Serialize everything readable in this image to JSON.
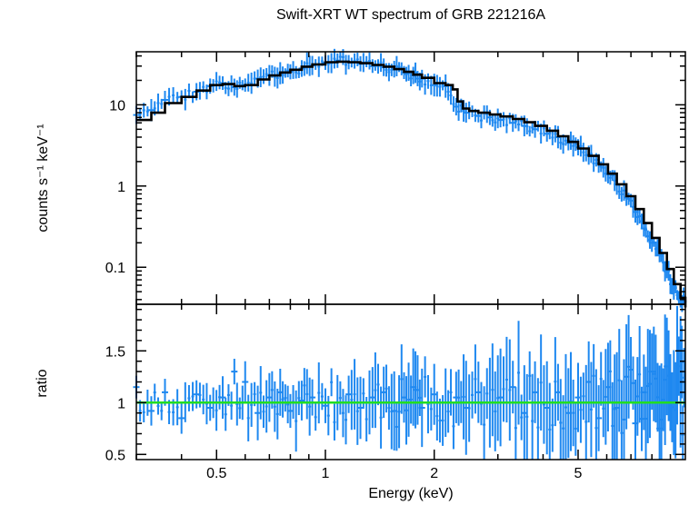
{
  "title": "Swift-XRT WT spectrum of GRB 221216A",
  "colors": {
    "data": "#1e88f0",
    "model": "#000000",
    "unity": "#22dd22",
    "axes": "#000000"
  },
  "chart_data": [
    {
      "type": "line",
      "panel": "spectrum",
      "title": "Swift-XRT WT spectrum of GRB 221216A",
      "xlabel": "Energy (keV)",
      "ylabel": "counts s⁻¹ keV⁻¹",
      "xscale": "log",
      "yscale": "log",
      "xlim": [
        0.3,
        9.9
      ],
      "ylim": [
        0.035,
        45
      ],
      "yticks": [
        {
          "value": 0.1,
          "label": "0.1"
        },
        {
          "value": 1,
          "label": "1"
        },
        {
          "value": 10,
          "label": "10"
        }
      ],
      "series": [
        {
          "kind": "data",
          "x": [
            0.3,
            0.33,
            0.36,
            0.4,
            0.44,
            0.48,
            0.52,
            0.56,
            0.6,
            0.65,
            0.7,
            0.75,
            0.8,
            0.86,
            0.92,
            1.0,
            1.08,
            1.16,
            1.25,
            1.35,
            1.45,
            1.55,
            1.65,
            1.75,
            1.85,
            2.0,
            2.15,
            2.3,
            2.45,
            2.65,
            2.85,
            3.05,
            3.3,
            3.55,
            3.8,
            4.1,
            4.4,
            4.7,
            5.0,
            5.35,
            5.7,
            6.05,
            6.4,
            6.8,
            7.2,
            7.6,
            8.0,
            8.4,
            8.8,
            9.2,
            9.6
          ],
          "y": [
            7.5,
            8.6,
            11.5,
            12.5,
            14.5,
            17.0,
            18.5,
            16.5,
            17.5,
            21.0,
            23.0,
            24.5,
            25.5,
            28.0,
            30.5,
            33.0,
            35.0,
            33.5,
            32.0,
            30.0,
            29.0,
            27.5,
            25.0,
            23.0,
            21.0,
            17.5,
            17.0,
            9.5,
            8.0,
            7.3,
            7.0,
            6.5,
            6.0,
            5.5,
            5.0,
            4.4,
            4.0,
            3.4,
            3.0,
            2.4,
            1.9,
            1.4,
            1.05,
            0.72,
            0.48,
            0.3,
            0.2,
            0.14,
            0.09,
            0.055,
            0.04
          ]
        },
        {
          "kind": "model",
          "x": [
            0.3,
            0.33,
            0.36,
            0.4,
            0.44,
            0.48,
            0.52,
            0.56,
            0.6,
            0.65,
            0.7,
            0.75,
            0.8,
            0.86,
            0.92,
            1.0,
            1.08,
            1.16,
            1.25,
            1.35,
            1.45,
            1.55,
            1.65,
            1.75,
            1.85,
            2.0,
            2.15,
            2.25,
            2.32,
            2.4,
            2.5,
            2.65,
            2.85,
            3.05,
            3.3,
            3.55,
            3.8,
            4.1,
            4.4,
            4.7,
            5.0,
            5.35,
            5.7,
            6.05,
            6.4,
            6.8,
            7.2,
            7.6,
            8.0,
            8.4,
            8.8,
            9.2,
            9.6,
            9.9
          ],
          "y": [
            6.5,
            8.0,
            10.5,
            12.5,
            15.0,
            17.5,
            18.0,
            17.0,
            17.5,
            20.5,
            23.0,
            25.0,
            27.0,
            29.5,
            31.5,
            33.5,
            34.0,
            33.5,
            32.5,
            31.0,
            29.5,
            27.5,
            25.5,
            23.5,
            21.5,
            18.5,
            17.5,
            15.5,
            11.0,
            9.0,
            8.4,
            8.0,
            7.6,
            7.2,
            6.7,
            6.1,
            5.5,
            4.8,
            4.1,
            3.5,
            2.9,
            2.35,
            1.85,
            1.42,
            1.05,
            0.75,
            0.52,
            0.35,
            0.23,
            0.15,
            0.095,
            0.062,
            0.042,
            0.032
          ]
        }
      ]
    },
    {
      "type": "line",
      "panel": "ratio",
      "xlabel": "Energy (keV)",
      "ylabel": "ratio",
      "xscale": "log",
      "xlim": [
        0.3,
        9.9
      ],
      "ylim": [
        0.45,
        1.95
      ],
      "xticks": [
        {
          "value": 0.5,
          "label": "0.5"
        },
        {
          "value": 1,
          "label": "1"
        },
        {
          "value": 2,
          "label": "2"
        },
        {
          "value": 5,
          "label": "5"
        }
      ],
      "yticks": [
        {
          "value": 0.5,
          "label": "0.5"
        },
        {
          "value": 1,
          "label": "1"
        },
        {
          "value": 1.5,
          "label": "1.5"
        }
      ],
      "series": [
        {
          "kind": "data",
          "x": [
            0.3,
            0.33,
            0.36,
            0.4,
            0.44,
            0.48,
            0.52,
            0.56,
            0.6,
            0.65,
            0.7,
            0.75,
            0.8,
            0.86,
            0.92,
            1.0,
            1.08,
            1.16,
            1.25,
            1.35,
            1.45,
            1.55,
            1.65,
            1.75,
            1.85,
            2.0,
            2.15,
            2.3,
            2.45,
            2.65,
            2.85,
            3.05,
            3.3,
            3.55,
            3.8,
            4.1,
            4.4,
            4.7,
            5.0,
            5.35,
            5.7,
            6.05,
            6.4,
            6.8,
            7.2,
            7.6,
            8.0,
            8.4,
            8.8,
            9.2,
            9.6
          ],
          "y": [
            1.15,
            0.92,
            1.1,
            0.85,
            1.08,
            0.95,
            1.05,
            1.3,
            1.2,
            0.9,
            1.05,
            1.1,
            0.92,
            1.02,
            1.05,
            0.97,
            1.0,
            1.08,
            0.95,
            1.05,
            1.1,
            0.92,
            1.05,
            1.15,
            0.95,
            1.08,
            1.0,
            1.05,
            0.95,
            1.1,
            1.0,
            1.05,
            1.15,
            0.9,
            1.1,
            0.95,
            1.1,
            0.9,
            1.05,
            1.2,
            0.85,
            1.15,
            0.95,
            1.25,
            0.8,
            1.1,
            1.3,
            0.75,
            1.35,
            1.0,
            1.2
          ]
        },
        {
          "kind": "unity",
          "x": [
            0.3,
            9.9
          ],
          "y": [
            1,
            1
          ]
        }
      ]
    }
  ]
}
